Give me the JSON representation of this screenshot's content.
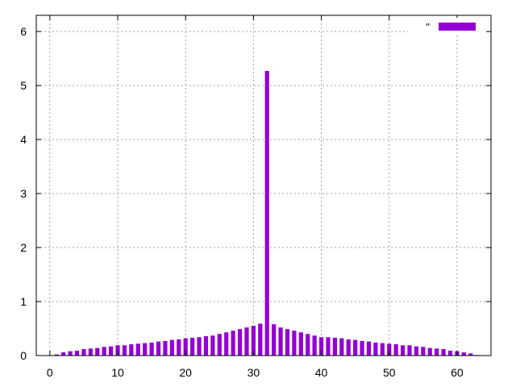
{
  "chart_data": {
    "type": "bar",
    "series": [
      {
        "name": "''",
        "color": "#9400d3",
        "x": [
          0,
          1,
          2,
          3,
          4,
          5,
          6,
          7,
          8,
          9,
          10,
          11,
          12,
          13,
          14,
          15,
          16,
          17,
          18,
          19,
          20,
          21,
          22,
          23,
          24,
          25,
          26,
          27,
          28,
          29,
          30,
          31,
          32,
          33,
          34,
          35,
          36,
          37,
          38,
          39,
          40,
          41,
          42,
          43,
          44,
          45,
          46,
          47,
          48,
          49,
          50,
          51,
          52,
          53,
          54,
          55,
          56,
          57,
          58,
          59,
          60,
          61,
          62,
          63
        ],
        "values": [
          0.0,
          0.02,
          0.06,
          0.08,
          0.09,
          0.12,
          0.13,
          0.14,
          0.16,
          0.17,
          0.19,
          0.19,
          0.21,
          0.22,
          0.23,
          0.24,
          0.26,
          0.27,
          0.29,
          0.3,
          0.32,
          0.33,
          0.34,
          0.36,
          0.37,
          0.4,
          0.43,
          0.46,
          0.49,
          0.52,
          0.55,
          0.59,
          5.27,
          0.58,
          0.52,
          0.49,
          0.46,
          0.43,
          0.4,
          0.37,
          0.34,
          0.34,
          0.33,
          0.32,
          0.3,
          0.29,
          0.27,
          0.26,
          0.24,
          0.23,
          0.22,
          0.21,
          0.19,
          0.19,
          0.17,
          0.16,
          0.14,
          0.13,
          0.12,
          0.09,
          0.08,
          0.06,
          0.04,
          0.01
        ]
      }
    ],
    "title": "",
    "xlabel": "",
    "ylabel": "",
    "xlim": [
      -2,
      65
    ],
    "ylim": [
      0,
      6.3
    ],
    "xticks": [
      0,
      10,
      20,
      30,
      40,
      50,
      60
    ],
    "xtick_labels": [
      "0",
      "10",
      "20",
      "30",
      "40",
      "50",
      "60"
    ],
    "yticks": [
      0,
      1,
      2,
      3,
      4,
      5,
      6
    ],
    "ytick_labels": [
      "0",
      "1",
      "2",
      "3",
      "4",
      "5",
      "6"
    ],
    "grid": true,
    "legend_position": "top-right"
  }
}
